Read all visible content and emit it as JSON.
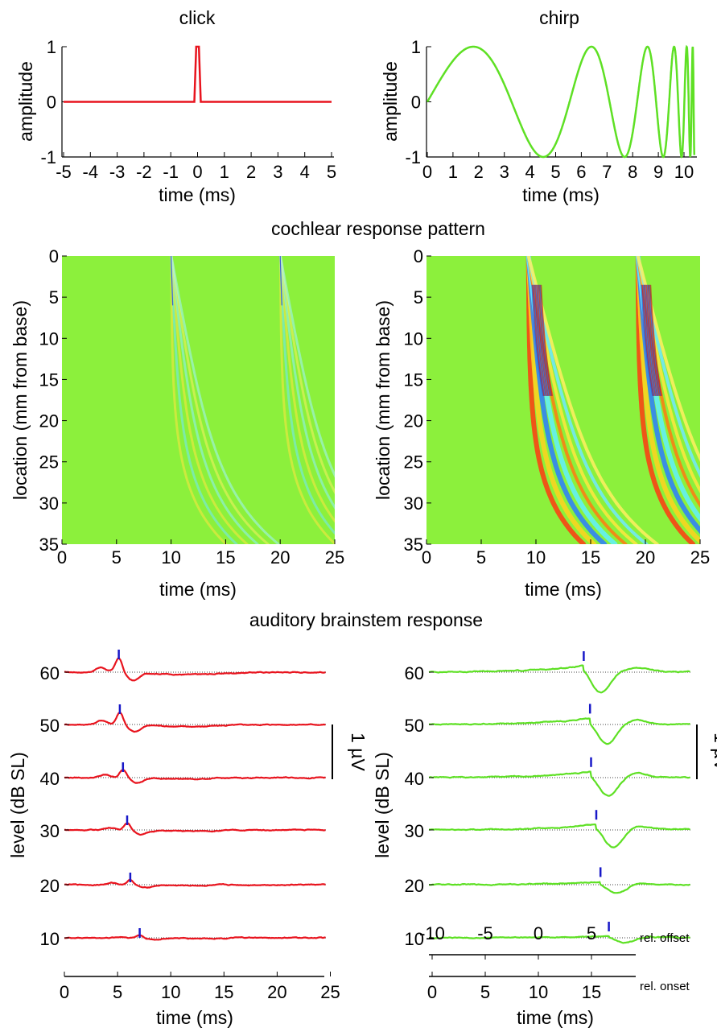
{
  "top_left": {
    "title": "click",
    "ylabel": "amplitude",
    "xlabel": "time (ms)",
    "xticks": [
      "-5",
      "-4",
      "-3",
      "-2",
      "-1",
      "0",
      "1",
      "2",
      "3",
      "4",
      "5"
    ],
    "yticks": [
      "1",
      "0",
      "-1"
    ]
  },
  "top_right": {
    "title": "chirp",
    "ylabel": "amplitude",
    "xlabel": "time (ms)",
    "xticks": [
      "0",
      "1",
      "2",
      "3",
      "4",
      "5",
      "6",
      "7",
      "8",
      "9",
      "10"
    ],
    "yticks": [
      "1",
      "0",
      "-1"
    ]
  },
  "cochlear": {
    "title": "cochlear response pattern",
    "ylabel": "location (mm from base)",
    "xlabel": "time (ms)",
    "yticks": [
      "0",
      "5",
      "10",
      "15",
      "20",
      "25",
      "30",
      "35"
    ],
    "xticks": [
      "0",
      "5",
      "10",
      "15",
      "20",
      "25"
    ]
  },
  "abr": {
    "title": "auditory brainstem response",
    "ylabel": "level (dB SL)",
    "xlabel": "time (ms)",
    "yticks": [
      "60",
      "50",
      "40",
      "30",
      "20",
      "10"
    ],
    "xticks_left": [
      "0",
      "5",
      "10",
      "15",
      "20",
      "25"
    ],
    "scale_bar": "1 µV",
    "offset_label": "rel. offset",
    "onset_label": "rel. onset",
    "offset_ticks": [
      "-10",
      "-5",
      "0",
      "5"
    ],
    "onset_ticks": [
      "0",
      "5",
      "10",
      "15"
    ]
  },
  "colors": {
    "click": "#e8141e",
    "chirp": "#5ee024",
    "marker": "#1818c8",
    "background_map": "#8cf03c"
  },
  "chart_data": [
    {
      "type": "line",
      "title": "click",
      "xlabel": "time (ms)",
      "ylabel": "amplitude",
      "xlim": [
        -5,
        5
      ],
      "ylim": [
        -1,
        1
      ],
      "x": [
        -5,
        -0.1,
        0,
        0.1,
        5
      ],
      "series": [
        {
          "values": [
            0,
            0,
            1,
            0,
            0
          ]
        }
      ]
    },
    {
      "type": "line",
      "title": "chirp",
      "xlabel": "time (ms)",
      "ylabel": "amplitude",
      "xlim": [
        0,
        10
      ],
      "ylim": [
        -1,
        1
      ],
      "x": [
        0,
        2,
        4.4,
        5.9,
        7,
        7.8,
        8.3,
        8.8,
        9.2,
        9.6,
        10
      ],
      "series": [
        {
          "values": [
            0,
            1,
            -1,
            1,
            -1,
            1,
            -1,
            1,
            -1,
            1,
            -1
          ]
        }
      ]
    },
    {
      "type": "heatmap",
      "xlabel": "time (ms)",
      "ylabel": "location (mm from base)",
      "xlim": [
        0,
        25
      ],
      "ylim": [
        0,
        35
      ],
      "stimulus": "click"
    },
    {
      "type": "heatmap",
      "xlabel": "time (ms)",
      "ylabel": "location (mm from base)",
      "xlim": [
        0,
        25
      ],
      "ylim": [
        0,
        35
      ],
      "stimulus": "chirp"
    },
    {
      "type": "line",
      "stimulus": "click",
      "xlabel": "time (ms)",
      "ylabel": "level (dB SL)",
      "xlim": [
        0,
        25
      ],
      "levels": [
        60,
        50,
        40,
        30,
        20,
        10
      ],
      "wave_v_latency_ms": [
        5.2,
        5.3,
        5.6,
        6.0,
        6.3,
        7.2
      ]
    },
    {
      "type": "line",
      "stimulus": "chirp",
      "xlabel": "time (ms)",
      "ylabel": "level (dB SL)",
      "xlim": [
        0,
        25
      ],
      "levels": [
        60,
        50,
        40,
        30,
        20,
        10
      ],
      "wave_v_latency_ms": [
        14.8,
        15.4,
        15.5,
        16.0,
        16.4,
        17.2
      ]
    }
  ]
}
